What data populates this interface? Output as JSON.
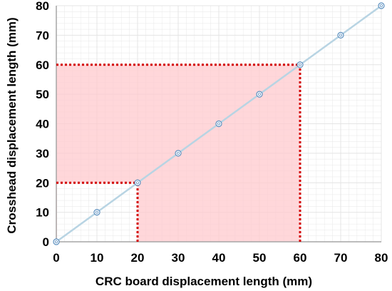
{
  "chart_data": {
    "type": "scatter",
    "xlabel": "CRC board displacement length (mm)",
    "ylabel": "Crosshead displacement length (mm)",
    "xlim": [
      0,
      80
    ],
    "ylim": [
      0,
      80
    ],
    "x_ticks": [
      0,
      10,
      20,
      30,
      40,
      50,
      60,
      70,
      80
    ],
    "y_ticks": [
      0,
      10,
      20,
      30,
      40,
      50,
      60,
      70,
      80
    ],
    "grid": true,
    "series": [
      {
        "x": [
          0,
          10,
          20,
          30,
          40,
          50,
          60,
          70,
          80
        ],
        "y": [
          0,
          10,
          20,
          30,
          40,
          50,
          60,
          70,
          80
        ],
        "line": true,
        "marker": "circle"
      }
    ],
    "highlight_region": {
      "x": [
        20,
        60
      ],
      "y": [
        20,
        60
      ]
    },
    "guide_lines": [
      {
        "from": [
          0,
          20
        ],
        "to": [
          20,
          20
        ]
      },
      {
        "from": [
          20,
          0
        ],
        "to": [
          20,
          20
        ]
      },
      {
        "from": [
          0,
          60
        ],
        "to": [
          60,
          60
        ]
      },
      {
        "from": [
          60,
          0
        ],
        "to": [
          60,
          60
        ]
      }
    ],
    "colors": {
      "line": "#b8d4e3",
      "marker": "#5b8fbf",
      "highlight_fill": "#ffc9cd",
      "guide": "#d40000",
      "grid": "#e4e4e4",
      "axis": "#a6a6a6"
    }
  }
}
